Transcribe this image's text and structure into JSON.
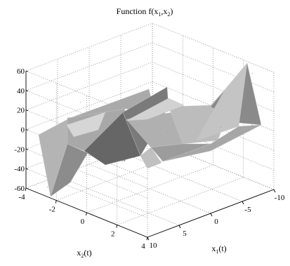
{
  "chart_data": {
    "type": "surface3d",
    "title": "Function f(x",
    "title_sub1": "1",
    "title_mid": ",x",
    "title_sub2": "2",
    "title_end": ")",
    "xlabel_main": "x",
    "xlabel_sub": "1",
    "xlabel_end": "(t)",
    "ylabel_main": "x",
    "ylabel_sub": "2",
    "ylabel_end": "(t)",
    "zlabel": "",
    "x1_ticks": [
      "10",
      "5",
      "0",
      "-5",
      "-10"
    ],
    "x2_ticks": [
      "-4",
      "-2",
      "0",
      "2",
      "4"
    ],
    "z_ticks": [
      "60",
      "40",
      "20",
      "0",
      "-20",
      "-40",
      "-60"
    ],
    "x1_range": [
      -10,
      10
    ],
    "x2_range": [
      -4,
      4
    ],
    "z_range": [
      -60,
      60
    ],
    "grid": true,
    "colormap": "gray",
    "surface_points": [
      {
        "x1": 9,
        "x2": -3,
        "f": -13
      },
      {
        "x1": 9,
        "x2": -3,
        "f": -55
      },
      {
        "x1": 7,
        "x2": -2,
        "f": -35
      },
      {
        "x1": 2,
        "x2": 2,
        "f": 15
      },
      {
        "x1": -4,
        "x2": 3,
        "f": 12
      },
      {
        "x1": -9,
        "x2": 3,
        "f": 55
      },
      {
        "x1": -9,
        "x2": 3,
        "f": 2
      },
      {
        "x1": 5,
        "x2": -2.5,
        "f": 25
      }
    ]
  }
}
